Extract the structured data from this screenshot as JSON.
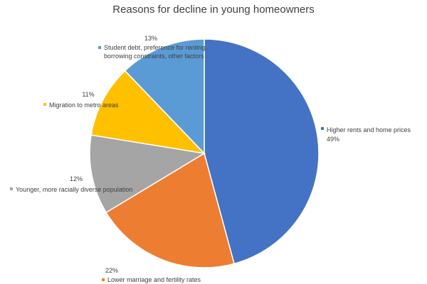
{
  "chart_data": {
    "type": "pie",
    "title": "Reasons for decline in young homeowners",
    "categories": [
      "Higher rents and home prices",
      "Lower marriage and fertility rates",
      "Younger, more racially diverse population",
      "Migration to metro areas",
      "Student debt, preference for renting, borrowing constraints, other factors"
    ],
    "values": [
      49,
      22,
      12,
      11,
      13
    ],
    "percent_labels": [
      "49%",
      "22%",
      "12%",
      "11%",
      "13%"
    ],
    "colors": [
      "#4472C4",
      "#ED7D31",
      "#A5A5A5",
      "#FFC000",
      "#5B9BD5"
    ],
    "start_angle": "12 o'clock, clockwise",
    "legend": "none (data labels beside slices)"
  }
}
